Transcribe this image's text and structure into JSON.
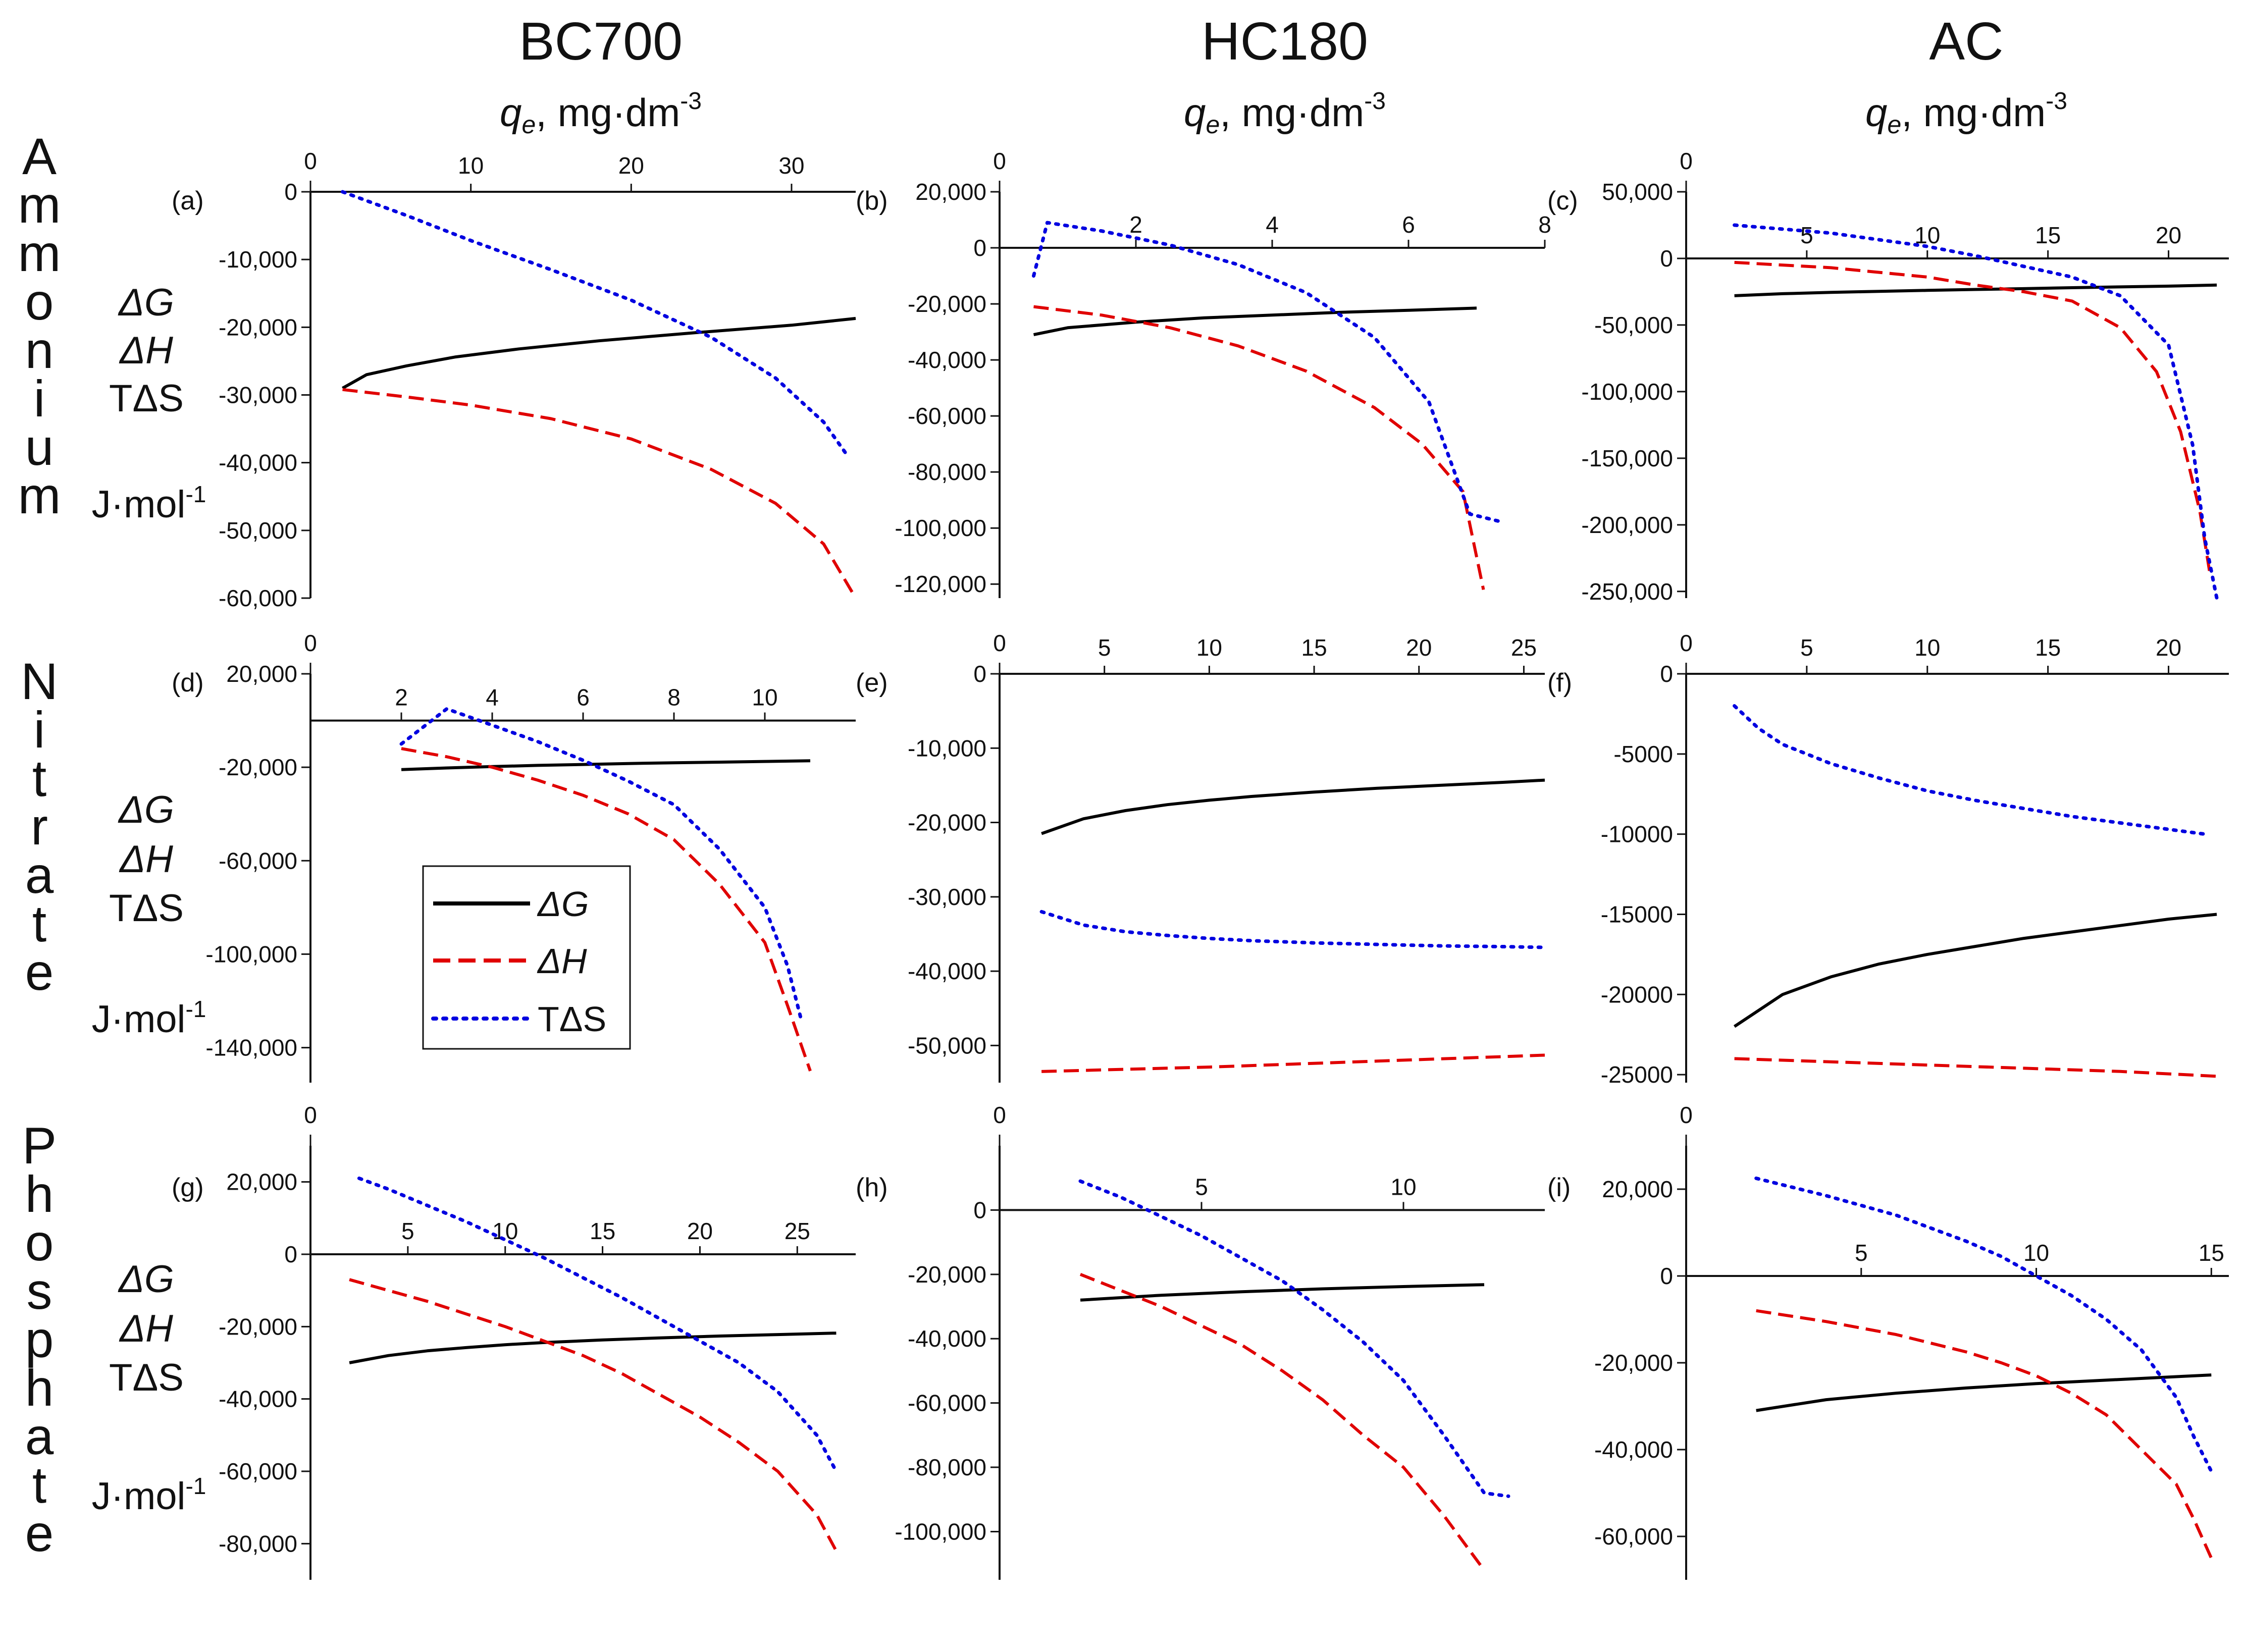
{
  "column_titles": [
    "BC700",
    "HC180",
    "AC"
  ],
  "x_axis_label": {
    "symbol": "q",
    "subscript": "e",
    "units": ", mg·dm",
    "exponent": "-3"
  },
  "row_titles": [
    "Ammonium",
    "Nitrate",
    "Phosphate"
  ],
  "y_axis_label": {
    "lines": [
      "ΔG",
      "ΔH",
      "TΔS"
    ],
    "units": "J·mol",
    "exponent": "-1"
  },
  "legend": [
    {
      "label": "ΔG",
      "color": "#000000",
      "style": "solid"
    },
    {
      "label": "ΔH",
      "color": "#e00000",
      "style": "dashed"
    },
    {
      "label": "TΔS",
      "color": "#0000e0",
      "style": "dotted"
    }
  ],
  "colors": {
    "dG": "#000000",
    "dH": "#e00000",
    "TdS": "#0000e0"
  },
  "chart_data": [
    {
      "id": "a",
      "label": "(a)",
      "type": "line",
      "xlim": [
        0,
        34
      ],
      "ylim": [
        -60000,
        0
      ],
      "x_zero_label": "0",
      "xticks": [
        10,
        20,
        30
      ],
      "xtick_labels": [
        "10",
        "20",
        "30"
      ],
      "yticks": [
        0,
        -10000,
        -20000,
        -30000,
        -40000,
        -50000,
        -60000
      ],
      "ytick_labels": [
        "0",
        "-10,000",
        "-20,000",
        "-30,000",
        "-40,000",
        "-50,000",
        "-60,000"
      ],
      "series": [
        {
          "name": "ΔG",
          "x": [
            2,
            3.5,
            6,
            9,
            13,
            18,
            24,
            30,
            34
          ],
          "y": [
            -29000,
            -27000,
            -25700,
            -24400,
            -23200,
            -22000,
            -20800,
            -19700,
            -18700
          ]
        },
        {
          "name": "ΔH",
          "x": [
            2,
            6,
            10,
            15,
            20,
            25,
            29,
            32,
            34
          ],
          "y": [
            -29200,
            -30300,
            -31500,
            -33500,
            -36500,
            -41000,
            -46000,
            -52000,
            -60000
          ]
        },
        {
          "name": "TΔS",
          "x": [
            2,
            6,
            10,
            15,
            20,
            25,
            29,
            32,
            33.5
          ],
          "y": [
            0,
            -3500,
            -7200,
            -11500,
            -16000,
            -21500,
            -27500,
            -34000,
            -39000
          ]
        }
      ]
    },
    {
      "id": "b",
      "label": "(b)",
      "type": "line",
      "xlim": [
        0,
        8
      ],
      "ylim": [
        -125000,
        20000
      ],
      "x_zero_label": "0",
      "xticks": [
        2,
        4,
        6,
        8
      ],
      "xtick_labels": [
        "2",
        "4",
        "6",
        "8"
      ],
      "yticks": [
        20000,
        0,
        -20000,
        -40000,
        -60000,
        -80000,
        -100000,
        -120000
      ],
      "ytick_labels": [
        "20,000",
        "0",
        "-20,000",
        "-40,000",
        "-60,000",
        "-80,000",
        "-100,000",
        "-120,000"
      ],
      "series": [
        {
          "name": "ΔG",
          "x": [
            0.5,
            1,
            2,
            3,
            4,
            5,
            6,
            7
          ],
          "y": [
            -31000,
            -28500,
            -26500,
            -25000,
            -24000,
            -23000,
            -22300,
            -21500
          ]
        },
        {
          "name": "ΔH",
          "x": [
            0.5,
            1.5,
            2.5,
            3.5,
            4.5,
            5.5,
            6.2,
            6.8,
            7.1
          ],
          "y": [
            -21000,
            -24000,
            -28500,
            -35000,
            -44000,
            -57000,
            -70000,
            -87000,
            -122000
          ]
        },
        {
          "name": "TΔS",
          "x": [
            0.5,
            0.7,
            1.5,
            2.5,
            3.5,
            4.5,
            5.5,
            6.3,
            6.9,
            7.4
          ],
          "y": [
            -10000,
            9000,
            6000,
            1000,
            -6000,
            -16000,
            -32000,
            -55000,
            -95000,
            -98000
          ]
        }
      ]
    },
    {
      "id": "c",
      "label": "(c)",
      "type": "line",
      "xlim": [
        0,
        22.5
      ],
      "ylim": [
        -255000,
        50000
      ],
      "x_zero_label": "0",
      "xticks": [
        5,
        10,
        15,
        20
      ],
      "xtick_labels": [
        "5",
        "10",
        "15",
        "20"
      ],
      "yticks": [
        50000,
        0,
        -50000,
        -100000,
        -150000,
        -200000,
        -250000
      ],
      "ytick_labels": [
        "50,000",
        "0",
        "-50,000",
        "-100,000",
        "-150,000",
        "-200,000",
        "-250,000"
      ],
      "series": [
        {
          "name": "ΔG",
          "x": [
            2,
            4,
            6,
            8,
            10,
            12,
            14,
            16,
            18,
            20,
            22
          ],
          "y": [
            -28000,
            -26500,
            -25500,
            -24700,
            -24000,
            -23300,
            -22700,
            -22000,
            -21400,
            -20800,
            -20000
          ]
        },
        {
          "name": "ΔH",
          "x": [
            2,
            6,
            10,
            12,
            14,
            16,
            18,
            19.5,
            20.5,
            21.3,
            21.7
          ],
          "y": [
            -3000,
            -7000,
            -14000,
            -20000,
            -25000,
            -32000,
            -52000,
            -85000,
            -130000,
            -190000,
            -235000
          ]
        },
        {
          "name": "TΔS",
          "x": [
            2,
            6,
            10,
            12,
            14,
            16,
            18,
            20,
            21,
            21.5,
            22
          ],
          "y": [
            25000,
            19000,
            9000,
            2000,
            -6000,
            -14000,
            -28000,
            -65000,
            -140000,
            -210000,
            -255000
          ]
        }
      ]
    },
    {
      "id": "d",
      "label": "(d)",
      "type": "line",
      "xlim": [
        0,
        12
      ],
      "ylim": [
        -155000,
        20000
      ],
      "x_zero_label": "0",
      "xticks": [
        2,
        4,
        6,
        8,
        10
      ],
      "xtick_labels": [
        "2",
        "4",
        "6",
        "8",
        "10"
      ],
      "yticks": [
        20000,
        -20000,
        -60000,
        -100000,
        -140000
      ],
      "ytick_labels": [
        "20,000",
        "-20,000",
        "-60,000",
        "-100,000",
        "-140,000"
      ],
      "series": [
        {
          "name": "ΔG",
          "x": [
            2,
            3,
            4,
            5,
            6,
            7,
            8,
            9,
            10,
            11
          ],
          "y": [
            -21000,
            -20300,
            -19700,
            -19200,
            -18800,
            -18400,
            -18100,
            -17800,
            -17500,
            -17200
          ]
        },
        {
          "name": "ΔH",
          "x": [
            2,
            3,
            4,
            5,
            6,
            7,
            8,
            9,
            10,
            10.5,
            11
          ],
          "y": [
            -12000,
            -15500,
            -20000,
            -25500,
            -32000,
            -40000,
            -51000,
            -70000,
            -95000,
            -122000,
            -150000
          ]
        },
        {
          "name": "TΔS",
          "x": [
            2,
            3,
            4,
            5,
            6,
            7,
            8,
            9,
            10,
            10.5,
            10.8
          ],
          "y": [
            -10000,
            5000,
            -2000,
            -9000,
            -17000,
            -26000,
            -36000,
            -55000,
            -80000,
            -105000,
            -128000
          ]
        }
      ]
    },
    {
      "id": "e",
      "label": "(e)",
      "type": "line",
      "xlim": [
        0,
        26
      ],
      "ylim": [
        -55000,
        0
      ],
      "x_zero_label": "0",
      "xticks": [
        0,
        5,
        10,
        15,
        20,
        25
      ],
      "xtick_labels": [
        "0",
        "5",
        "10",
        "15",
        "20",
        "25"
      ],
      "yticks": [
        0,
        -10000,
        -20000,
        -30000,
        -40000,
        -50000
      ],
      "ytick_labels": [
        "0",
        "-10,000",
        "-20,000",
        "-30,000",
        "-40,000",
        "-50,000"
      ],
      "series": [
        {
          "name": "ΔG",
          "x": [
            2,
            4,
            6,
            8,
            10,
            12,
            15,
            18,
            21,
            24,
            26
          ],
          "y": [
            -21500,
            -19500,
            -18400,
            -17600,
            -17000,
            -16500,
            -15900,
            -15400,
            -15000,
            -14600,
            -14300
          ]
        },
        {
          "name": "ΔH",
          "x": [
            2,
            6,
            10,
            14,
            18,
            22,
            26
          ],
          "y": [
            -53500,
            -53200,
            -52900,
            -52500,
            -52100,
            -51700,
            -51300
          ]
        },
        {
          "name": "TΔS",
          "x": [
            2,
            4,
            6,
            8,
            10,
            12,
            15,
            18,
            21,
            24,
            26
          ],
          "y": [
            -32000,
            -33800,
            -34700,
            -35200,
            -35600,
            -35900,
            -36200,
            -36400,
            -36600,
            -36700,
            -36800
          ]
        }
      ]
    },
    {
      "id": "f",
      "label": "(f)",
      "type": "line",
      "xlim": [
        0,
        22.5
      ],
      "ylim": [
        -25500,
        0
      ],
      "x_zero_label": "0",
      "xticks": [
        0,
        5,
        10,
        15,
        20
      ],
      "xtick_labels": [
        "0",
        "5",
        "10",
        "15",
        "20"
      ],
      "yticks": [
        0,
        -5000,
        -10000,
        -15000,
        -20000,
        -25000
      ],
      "ytick_labels": [
        "0",
        "-5000",
        "-10000",
        "-15000",
        "-20000",
        "-25000"
      ],
      "series": [
        {
          "name": "ΔG",
          "x": [
            2,
            4,
            6,
            8,
            10,
            12,
            14,
            16,
            18,
            20,
            22
          ],
          "y": [
            -22000,
            -20000,
            -18900,
            -18100,
            -17500,
            -17000,
            -16500,
            -16100,
            -15700,
            -15300,
            -15000
          ]
        },
        {
          "name": "ΔH",
          "x": [
            2,
            6,
            10,
            14,
            18,
            22
          ],
          "y": [
            -24000,
            -24200,
            -24400,
            -24600,
            -24800,
            -25100
          ]
        },
        {
          "name": "TΔS",
          "x": [
            2,
            3,
            4,
            6,
            8,
            10,
            12,
            14,
            16,
            18,
            20,
            21.5
          ],
          "y": [
            -2000,
            -3400,
            -4400,
            -5600,
            -6500,
            -7300,
            -7900,
            -8400,
            -8900,
            -9300,
            -9700,
            -10000
          ]
        }
      ]
    },
    {
      "id": "g",
      "label": "(g)",
      "type": "line",
      "xlim": [
        0,
        28
      ],
      "ylim": [
        -90000,
        30000
      ],
      "x_zero_label": "0",
      "xticks": [
        5,
        10,
        15,
        20,
        25
      ],
      "xtick_labels": [
        "5",
        "10",
        "15",
        "20",
        "25"
      ],
      "yticks": [
        20000,
        0,
        -20000,
        -40000,
        -60000,
        -80000
      ],
      "ytick_labels": [
        "20,000",
        "0",
        "-20,000",
        "-40,000",
        "-60,000",
        "-80,000"
      ],
      "series": [
        {
          "name": "ΔG",
          "x": [
            2,
            4,
            6,
            8,
            10,
            12,
            15,
            18,
            21,
            24,
            27
          ],
          "y": [
            -30000,
            -28000,
            -26700,
            -25800,
            -25000,
            -24400,
            -23700,
            -23100,
            -22600,
            -22200,
            -21800
          ]
        },
        {
          "name": "ΔH",
          "x": [
            2,
            4,
            6,
            8,
            10,
            12,
            14,
            16,
            18,
            20,
            22,
            24,
            26,
            27
          ],
          "y": [
            -7000,
            -10000,
            -13000,
            -16500,
            -20000,
            -24000,
            -28000,
            -33000,
            -39000,
            -45000,
            -52000,
            -60000,
            -72000,
            -82000
          ]
        },
        {
          "name": "TΔS",
          "x": [
            2.5,
            4,
            6,
            8,
            10,
            12,
            14,
            16,
            18,
            20,
            22,
            24,
            26,
            27
          ],
          "y": [
            21000,
            18000,
            13500,
            9000,
            4000,
            -1000,
            -6500,
            -12000,
            -18000,
            -24000,
            -30000,
            -38000,
            -50000,
            -60000
          ]
        }
      ]
    },
    {
      "id": "h",
      "label": "(h)",
      "type": "line",
      "xlim": [
        0,
        13.5
      ],
      "ylim": [
        -115000,
        20000
      ],
      "x_zero_label": "0",
      "xticks": [
        5,
        10
      ],
      "xtick_labels": [
        "5",
        "10"
      ],
      "yticks": [
        0,
        -20000,
        -40000,
        -60000,
        -80000,
        -100000
      ],
      "ytick_labels": [
        "0",
        "-20,000",
        "-40,000",
        "-60,000",
        "-80,000",
        "-100,000"
      ],
      "series": [
        {
          "name": "ΔG",
          "x": [
            2,
            4,
            6,
            8,
            10,
            12
          ],
          "y": [
            -28000,
            -26500,
            -25400,
            -24500,
            -23800,
            -23200
          ]
        },
        {
          "name": "ΔH",
          "x": [
            2,
            3,
            4,
            5,
            6,
            7,
            8,
            9,
            10,
            11,
            12
          ],
          "y": [
            -20000,
            -25000,
            -30000,
            -36000,
            -42000,
            -50000,
            -59000,
            -70000,
            -80000,
            -95000,
            -112000
          ]
        },
        {
          "name": "TΔS",
          "x": [
            2,
            3,
            4,
            5,
            6,
            7,
            8,
            9,
            10,
            11,
            12,
            12.6
          ],
          "y": [
            9000,
            4000,
            -2000,
            -8000,
            -15000,
            -22000,
            -31000,
            -41000,
            -53000,
            -70000,
            -88000,
            -89000
          ]
        }
      ]
    },
    {
      "id": "i",
      "label": "(i)",
      "type": "line",
      "xlim": [
        0,
        15.5
      ],
      "ylim": [
        -70000,
        30000
      ],
      "x_zero_label": "0",
      "xticks": [
        5,
        10,
        15
      ],
      "xtick_labels": [
        "5",
        "10",
        "15"
      ],
      "yticks": [
        20000,
        0,
        -20000,
        -40000,
        -60000
      ],
      "ytick_labels": [
        "20,000",
        "0",
        "-20,000",
        "-40,000",
        "-60,000"
      ],
      "series": [
        {
          "name": "ΔG",
          "x": [
            2,
            4,
            6,
            8,
            10,
            12,
            14,
            15
          ],
          "y": [
            -31000,
            -28500,
            -27000,
            -25800,
            -24800,
            -24000,
            -23200,
            -22800
          ]
        },
        {
          "name": "ΔH",
          "x": [
            2,
            4,
            6,
            8,
            9,
            10,
            11,
            12,
            13,
            14,
            14.5,
            15
          ],
          "y": [
            -8000,
            -10500,
            -13500,
            -17500,
            -20000,
            -23000,
            -27000,
            -32000,
            -40000,
            -48000,
            -56000,
            -65000
          ]
        },
        {
          "name": "TΔS",
          "x": [
            2,
            4,
            6,
            8,
            9,
            10,
            11,
            12,
            13,
            14,
            14.5,
            15
          ],
          "y": [
            22500,
            18500,
            14000,
            8000,
            4500,
            0,
            -4500,
            -10000,
            -17000,
            -28000,
            -37000,
            -45000
          ]
        }
      ]
    }
  ]
}
